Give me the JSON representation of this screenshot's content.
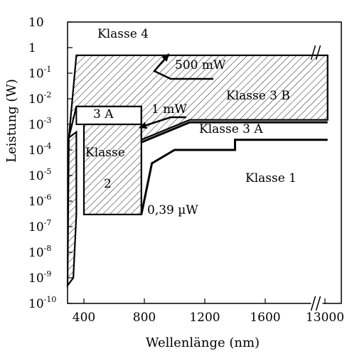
{
  "chart_data": {
    "type": "area",
    "xlabel": "Wellenlänge (nm)",
    "ylabel": "Leistung (W)",
    "x_scale": "broken-linear",
    "y_scale": "log",
    "xlim": [
      200,
      14000
    ],
    "ylim": [
      1e-10,
      10
    ],
    "x_ticks": [
      {
        "value": 400,
        "label": "400"
      },
      {
        "value": 800,
        "label": "800"
      },
      {
        "value": 1200,
        "label": "1200"
      },
      {
        "value": 1600,
        "label": "1600"
      },
      {
        "value": 13000,
        "label": "13000"
      }
    ],
    "x_break_at": 1800,
    "y_ticks": [
      {
        "value": 10,
        "base": "10",
        "exp": ""
      },
      {
        "value": 1,
        "base": "1",
        "exp": ""
      },
      {
        "value": 0.1,
        "base": "10",
        "exp": "-1"
      },
      {
        "value": 0.01,
        "base": "10",
        "exp": "-2"
      },
      {
        "value": 0.001,
        "base": "10",
        "exp": "-3"
      },
      {
        "value": 0.0001,
        "base": "10",
        "exp": "-4"
      },
      {
        "value": 1e-05,
        "base": "10",
        "exp": "-5"
      },
      {
        "value": 1e-06,
        "base": "10",
        "exp": "-6"
      },
      {
        "value": 1e-07,
        "base": "10",
        "exp": "-7"
      },
      {
        "value": 1e-08,
        "base": "10",
        "exp": "-8"
      },
      {
        "value": 1e-09,
        "base": "10",
        "exp": "-9"
      },
      {
        "value": 1e-10,
        "base": "10",
        "exp": "-10"
      }
    ],
    "grid": false,
    "regions": [
      {
        "name": "Klasse 3 B",
        "hatched": true,
        "points": [
          [
            300,
            0.0003
          ],
          [
            350,
            0.5
          ],
          [
            14000,
            0.5
          ],
          [
            14000,
            0.0015
          ],
          [
            1100,
            0.0015
          ],
          [
            780,
            0.00025
          ],
          [
            780,
            0.005
          ],
          [
            350,
            0.005
          ]
        ]
      },
      {
        "name": "Klasse 2",
        "hatched": true,
        "points": [
          [
            400,
            3e-07
          ],
          [
            780,
            3e-07
          ],
          [
            780,
            0.001
          ],
          [
            400,
            0.001
          ]
        ]
      },
      {
        "name": "Klasse 1",
        "hatched": true,
        "points": [
          [
            290,
            5e-10
          ],
          [
            300,
            0.0003
          ],
          [
            350,
            0.0005
          ],
          [
            350,
            3e-07
          ],
          [
            330,
            1e-09
          ]
        ]
      }
    ],
    "boundaries": [
      {
        "name": "Klasse 3 A",
        "points": [
          [
            780,
            0.0002
          ],
          [
            1100,
            0.0012
          ],
          [
            14000,
            0.0012
          ]
        ]
      },
      {
        "name": "Klasse 1",
        "points": [
          [
            780,
            3e-07
          ],
          [
            850,
            3e-05
          ],
          [
            1000,
            0.0001
          ],
          [
            1400,
            0.0001
          ],
          [
            1400,
            0.00025
          ],
          [
            14000,
            0.00025
          ]
        ]
      }
    ],
    "labels": {
      "klasse4": "Klasse 4",
      "klasse3b": "Klasse 3 B",
      "klasse3a_box": "3 A",
      "klasse3a": "Klasse 3 A",
      "klasse2_top": "Klasse",
      "klasse2_bottom": "2",
      "klasse1": "Klasse 1",
      "p500mw": "500 mW",
      "p1mw": "1 mW",
      "p039uw": "0,39 µW"
    }
  }
}
